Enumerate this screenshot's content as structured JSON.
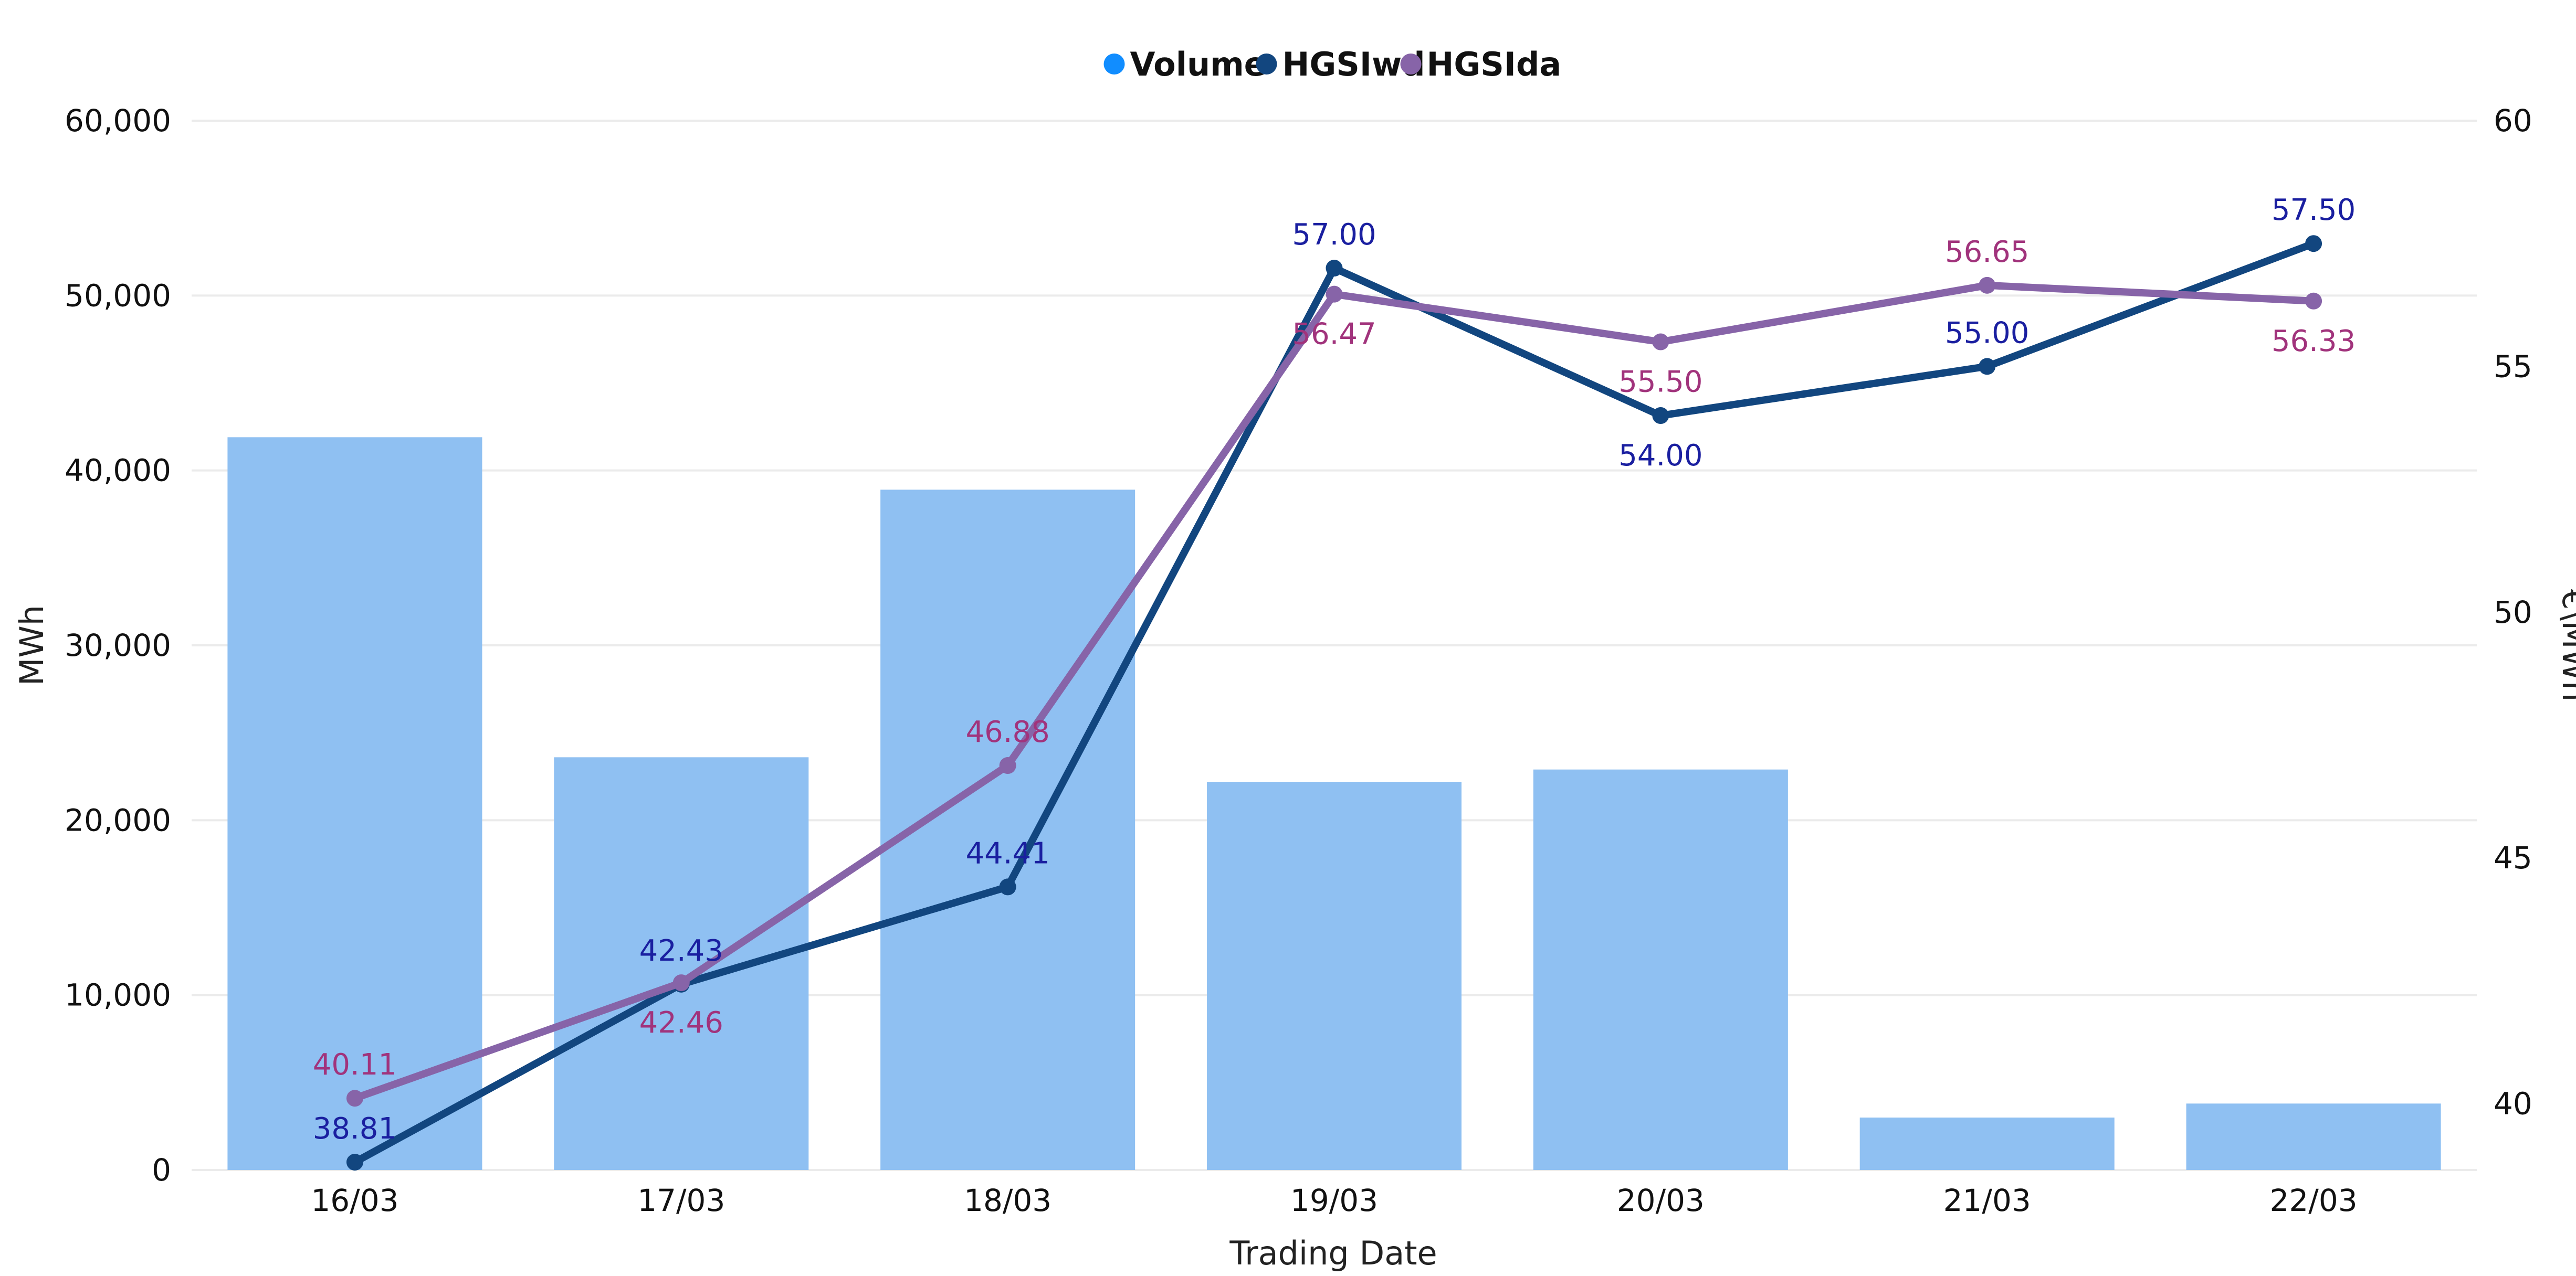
{
  "chart_data": {
    "type": "bar",
    "categories": [
      "16/03",
      "17/03",
      "18/03",
      "19/03",
      "20/03",
      "21/03",
      "22/03"
    ],
    "legend": [
      {
        "label": "Volume",
        "color": "#118DFF"
      },
      {
        "label": "HGSIwd",
        "color": "#12467F"
      },
      {
        "label": "HGSIda",
        "color": "#8764A8"
      }
    ],
    "series": [
      {
        "name": "Volume",
        "type": "bar",
        "axis": "left",
        "color": "#8FC0F2",
        "values": [
          41900,
          23600,
          38900,
          22200,
          22900,
          3000,
          3800
        ]
      },
      {
        "name": "HGSIwd",
        "type": "line",
        "axis": "right",
        "color": "#12467F",
        "label_color": "#1A1FA0",
        "values": [
          38.81,
          42.43,
          44.41,
          57.0,
          54.0,
          55.0,
          57.5
        ],
        "labels": [
          "38.81",
          "42.43",
          "44.41",
          "57.00",
          "54.00",
          "55.00",
          "57.50"
        ],
        "label_pos": [
          "above",
          "above",
          "above",
          "above",
          "below",
          "above",
          "above"
        ]
      },
      {
        "name": "HGSIda",
        "type": "line",
        "axis": "right",
        "color": "#8764A8",
        "label_color": "#A1337C",
        "values": [
          40.11,
          42.46,
          46.88,
          56.47,
          55.5,
          56.65,
          56.33
        ],
        "labels": [
          "40.11",
          "42.46",
          "46.88",
          "56.47",
          "55.50",
          "56.65",
          "56.33"
        ],
        "label_pos": [
          "above",
          "below",
          "above",
          "below",
          "below",
          "above",
          "below"
        ]
      }
    ],
    "xlabel": "Trading Date",
    "ylabel": "MWh",
    "y2label": "€\\MWh",
    "ylim": [
      0,
      60000
    ],
    "yticks": [
      0,
      10000,
      20000,
      30000,
      40000,
      50000,
      60000
    ],
    "ytick_labels": [
      "0",
      "10,000",
      "20,000",
      "30,000",
      "40,000",
      "50,000",
      "60,000"
    ],
    "y2lim": [
      38.65,
      60
    ],
    "y2ticks": [
      40,
      45,
      50,
      55,
      60
    ],
    "y2tick_labels": [
      "40",
      "45",
      "50",
      "55",
      "60"
    ],
    "grid": true,
    "legend_position": "top-center"
  }
}
